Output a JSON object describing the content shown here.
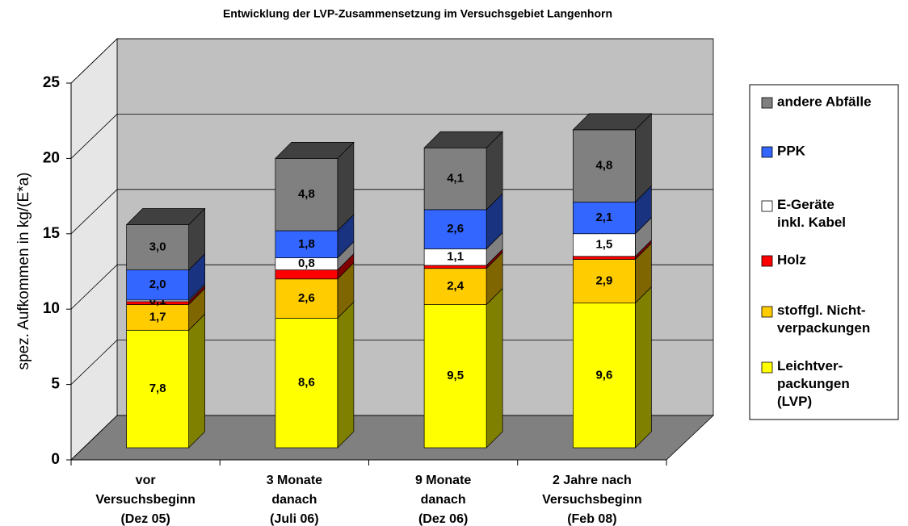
{
  "chart_data": {
    "type": "bar3d-stacked",
    "title": "Entwicklung der LVP-Zusammensetzung im Versuchsgebiet Langenhorn",
    "y_label": "spez. Aufkommen in kg/(E*a)",
    "categories": [
      "vor\nVersuchsbeginn\n(Dez 05)",
      "3 Monate\ndanach\n(Juli 06)",
      "9 Monate\ndanach\n(Dez 06)",
      "2 Jahre nach\nVersuchsbeginn\n(Feb 08)"
    ],
    "series": [
      {
        "name": "Leichtver-\npackungen\n(LVP)",
        "color": "#ffff00",
        "values": [
          7.8,
          8.6,
          9.5,
          9.6
        ],
        "value_labels": [
          "7,8",
          "8,6",
          "9,5",
          "9,6"
        ]
      },
      {
        "name": "stoffgl. Nicht-\nverpackungen",
        "color": "#ffcc00",
        "values": [
          1.7,
          2.6,
          2.4,
          2.9
        ],
        "value_labels": [
          "1,7",
          "2,6",
          "2,4",
          "2,9"
        ]
      },
      {
        "name": "Holz",
        "color": "#ff0000",
        "values": [
          0.2,
          0.6,
          0.2,
          0.2
        ],
        "value_labels": [
          null,
          null,
          null,
          null
        ]
      },
      {
        "name": "E-Geräte\ninkl. Kabel",
        "color": "#ffffff",
        "values": [
          0.1,
          0.8,
          1.1,
          1.5
        ],
        "value_labels": [
          "0,1",
          "0,8",
          "1,1",
          "1,5"
        ]
      },
      {
        "name": "PPK",
        "color": "#3366ff",
        "values": [
          2.0,
          1.8,
          2.6,
          2.1
        ],
        "value_labels": [
          "2,0",
          "1,8",
          "2,6",
          "2,1"
        ]
      },
      {
        "name": "andere Abfälle",
        "color": "#808080",
        "values": [
          3.0,
          4.8,
          4.1,
          4.8
        ],
        "value_labels": [
          "3,0",
          "4,8",
          "4,1",
          "4,8"
        ]
      }
    ],
    "ylim": [
      0,
      25
    ],
    "yticks": [
      0,
      5,
      10,
      15,
      20,
      25
    ],
    "grid": true,
    "legend": "right"
  }
}
